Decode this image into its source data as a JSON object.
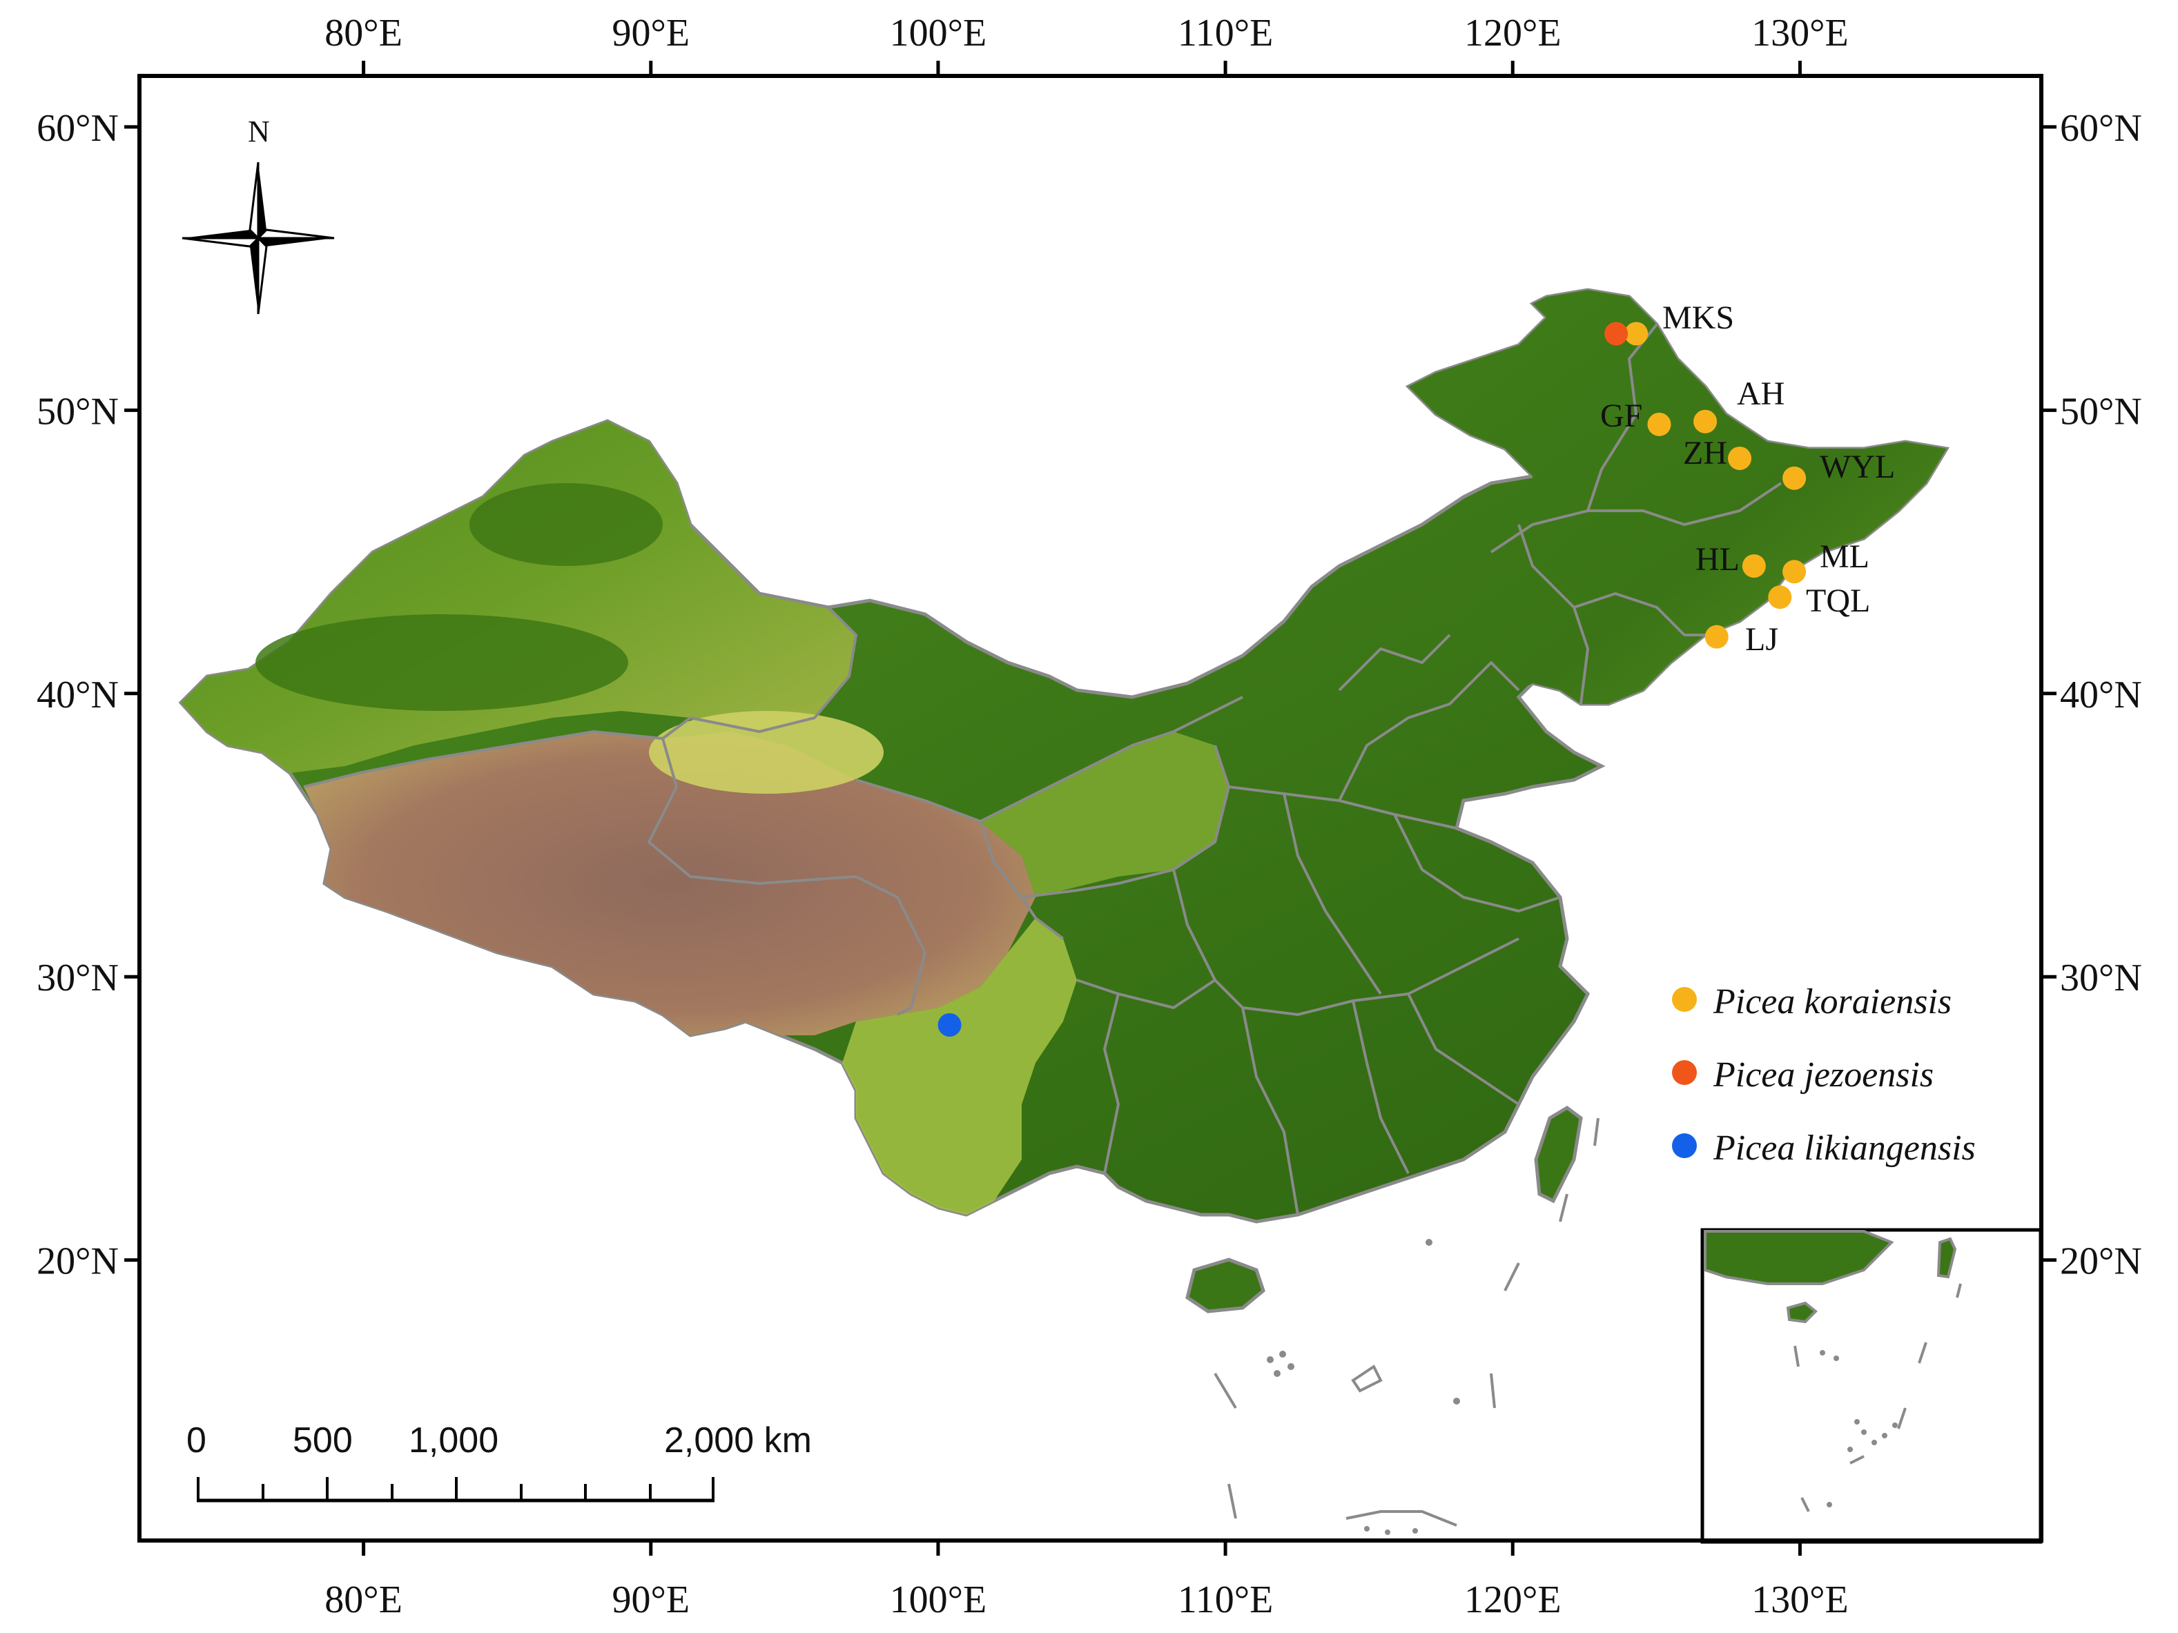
{
  "axes": {
    "top_ticks": [
      "80°E",
      "90°E",
      "100°E",
      "110°E",
      "120°E",
      "130°E"
    ],
    "bottom_ticks": [
      "80°E",
      "90°E",
      "100°E",
      "110°E",
      "120°E",
      "130°E"
    ],
    "left_ticks": [
      "60°N",
      "50°N",
      "40°N",
      "30°N",
      "20°N"
    ],
    "right_ticks": [
      "60°N",
      "50°N",
      "40°N",
      "30°N",
      "20°N"
    ],
    "lon_range": [
      72.2,
      138.4
    ],
    "lat_range": [
      10.1,
      61.8
    ]
  },
  "compass": {
    "label": "N"
  },
  "sites": [
    {
      "code": "MKS",
      "species": "koraiensis",
      "lon": 124.3,
      "lat": 52.7
    },
    {
      "code": "MKS_jez",
      "species": "jezoensis",
      "lon": 123.6,
      "lat": 52.7
    },
    {
      "code": "GF",
      "species": "koraiensis",
      "lon": 125.1,
      "lat": 49.5
    },
    {
      "code": "AH",
      "species": "koraiensis",
      "lon": 126.7,
      "lat": 49.6
    },
    {
      "code": "ZH",
      "species": "koraiensis",
      "lon": 127.9,
      "lat": 48.3
    },
    {
      "code": "WYL",
      "species": "koraiensis",
      "lon": 129.8,
      "lat": 47.6
    },
    {
      "code": "HL",
      "species": "koraiensis",
      "lon": 128.4,
      "lat": 44.5
    },
    {
      "code": "ML",
      "species": "koraiensis",
      "lon": 129.8,
      "lat": 44.3
    },
    {
      "code": "TQL",
      "species": "koraiensis",
      "lon": 129.3,
      "lat": 43.4
    },
    {
      "code": "LJ",
      "species": "koraiensis",
      "lon": 127.1,
      "lat": 42.0
    },
    {
      "code": "",
      "species": "likiangensis",
      "lon": 100.4,
      "lat": 28.3
    }
  ],
  "site_labels": {
    "MKS": "MKS",
    "GF": "GF",
    "AH": "AH",
    "ZH": "ZH",
    "WYL": "WYL",
    "HL": "HL",
    "ML": "ML",
    "TQL": "TQL",
    "LJ": "LJ"
  },
  "legend": {
    "entries": [
      {
        "species": "koraiensis",
        "label": "Picea koraiensis",
        "color": "#F7B21A"
      },
      {
        "species": "jezoensis",
        "label": "Picea jezoensis",
        "color": "#F0561A"
      },
      {
        "species": "likiangensis",
        "label": "Picea likiangensis",
        "color": "#1560E8"
      }
    ]
  },
  "scale_bar": {
    "labels": [
      "0",
      "500",
      "1,000",
      "2,000 km"
    ]
  },
  "colors": {
    "lowland": "#2E6B12",
    "mid": "#5E9A22",
    "upland": "#C5C85E",
    "plateau": "#9C6E5E",
    "border": "#8A8A8A",
    "frame": "#000000"
  }
}
